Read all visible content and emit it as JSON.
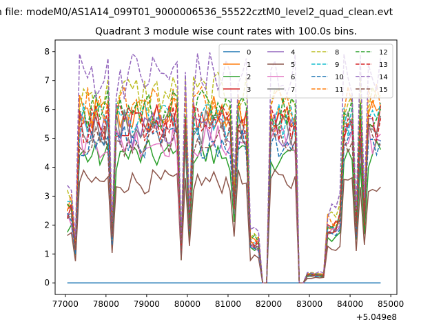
{
  "figure": {
    "suptitle": "n file: modeM0/AS1A14_099T01_9000006536_55522cztM0_level2_quad_clean.evt",
    "title": "Quadrant 3 module wise count rates with 100.0s bins.",
    "x_offset_label": "+5.049e8"
  },
  "chart_data": {
    "type": "line",
    "title": "Quadrant 3 module wise count rates with 100.0s bins.",
    "xlabel": "",
    "ylabel": "",
    "x_offset": "+5.049e8",
    "xlim": [
      76750,
      85150
    ],
    "ylim": [
      -0.4,
      8.4
    ],
    "x_ticks": [
      77000,
      78000,
      79000,
      80000,
      81000,
      82000,
      83000,
      84000,
      85000
    ],
    "y_ticks": [
      0,
      1,
      2,
      3,
      4,
      5,
      6,
      7,
      8
    ],
    "grid": false,
    "legend": {
      "placement": "top-right",
      "columns": 4
    },
    "x_min": 77050,
    "x_step": 100,
    "num_points": 78,
    "gaps": [
      [
        81850,
        81960
      ],
      [
        82700,
        82900
      ],
      [
        83360,
        83390
      ]
    ],
    "series": [
      {
        "name": "0",
        "color": "#1f77b4",
        "dash": "solid",
        "base": 0.0
      },
      {
        "name": "1",
        "color": "#ff7f0e",
        "dash": "solid",
        "base": 5.8
      },
      {
        "name": "2",
        "color": "#2ca02c",
        "dash": "solid",
        "base": 4.4
      },
      {
        "name": "3",
        "color": "#d62728",
        "dash": "solid",
        "base": 5.6
      },
      {
        "name": "4",
        "color": "#9467bd",
        "dash": "solid",
        "base": 5.3
      },
      {
        "name": "5",
        "color": "#8c564b",
        "dash": "solid",
        "base": 3.5
      },
      {
        "name": "6",
        "color": "#e377c2",
        "dash": "solid",
        "base": 4.9
      },
      {
        "name": "7",
        "color": "#7f7f7f",
        "dash": "solid",
        "base": 5.4
      },
      {
        "name": "8",
        "color": "#bcbd22",
        "dash": "dashed",
        "base": 6.5
      },
      {
        "name": "9",
        "color": "#17becf",
        "dash": "dashed",
        "base": 5.6
      },
      {
        "name": "10",
        "color": "#1f77b4",
        "dash": "dashed",
        "base": 4.9
      },
      {
        "name": "11",
        "color": "#ff7f0e",
        "dash": "dashed",
        "base": 6.2
      },
      {
        "name": "12",
        "color": "#2ca02c",
        "dash": "dashed",
        "base": 6.0
      },
      {
        "name": "13",
        "color": "#d62728",
        "dash": "dashed",
        "base": 5.5
      },
      {
        "name": "14",
        "color": "#9467bd",
        "dash": "dashed",
        "base": 7.2
      },
      {
        "name": "15",
        "color": "#8c564b",
        "dash": "dashed",
        "base": 5.0
      }
    ]
  }
}
